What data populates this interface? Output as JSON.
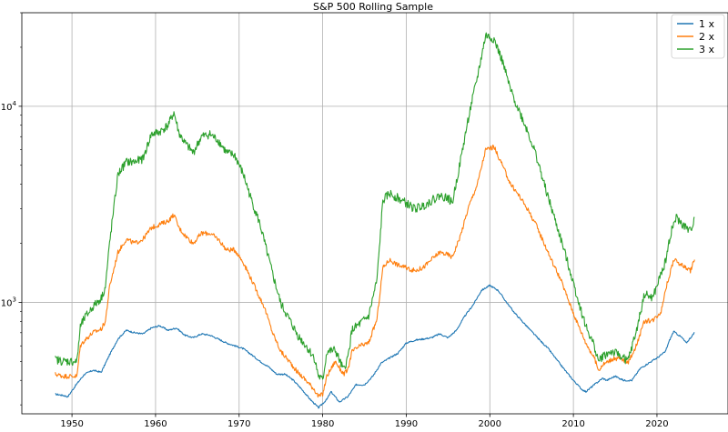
{
  "chart_data": {
    "type": "line",
    "title": "S&P 500 Rolling Sample",
    "xlabel": "",
    "ylabel": "",
    "xlim": [
      1944,
      2028.5
    ],
    "ylim": [
      270,
      30000
    ],
    "yscale": "log",
    "grid": true,
    "legend_position": "top-right",
    "x_ticks": [
      1950,
      1960,
      1970,
      1980,
      1990,
      2000,
      2010,
      2020
    ],
    "y_ticks": [
      {
        "value": 1000,
        "base": "10",
        "exp": "3"
      },
      {
        "value": 10000,
        "base": "10",
        "exp": "4"
      }
    ],
    "series": [
      {
        "name": "1 x",
        "color": "#1f77b4",
        "points": [
          [
            1948.0,
            340
          ],
          [
            1949.0,
            335
          ],
          [
            1949.5,
            330
          ],
          [
            1950.5,
            380
          ],
          [
            1951.5,
            430
          ],
          [
            1952.5,
            450
          ],
          [
            1953.5,
            440
          ],
          [
            1954.5,
            540
          ],
          [
            1955.5,
            650
          ],
          [
            1956.5,
            720
          ],
          [
            1957.5,
            700
          ],
          [
            1958.5,
            690
          ],
          [
            1959.5,
            740
          ],
          [
            1960.5,
            760
          ],
          [
            1961.5,
            720
          ],
          [
            1962.5,
            740
          ],
          [
            1963.5,
            680
          ],
          [
            1964.5,
            660
          ],
          [
            1965.5,
            690
          ],
          [
            1966.5,
            680
          ],
          [
            1967.5,
            650
          ],
          [
            1968.5,
            620
          ],
          [
            1969.5,
            600
          ],
          [
            1970.5,
            580
          ],
          [
            1971.5,
            540
          ],
          [
            1972.5,
            500
          ],
          [
            1973.5,
            470
          ],
          [
            1974.5,
            430
          ],
          [
            1975.5,
            430
          ],
          [
            1976.5,
            400
          ],
          [
            1977.5,
            360
          ],
          [
            1978.5,
            320
          ],
          [
            1979.5,
            290
          ],
          [
            1980.5,
            320
          ],
          [
            1981.0,
            350
          ],
          [
            1982.0,
            310
          ],
          [
            1983.0,
            330
          ],
          [
            1984.0,
            380
          ],
          [
            1985.0,
            380
          ],
          [
            1986.0,
            420
          ],
          [
            1987.0,
            490
          ],
          [
            1988.0,
            520
          ],
          [
            1989.0,
            550
          ],
          [
            1990.0,
            620
          ],
          [
            1991.0,
            640
          ],
          [
            1992.0,
            650
          ],
          [
            1993.0,
            660
          ],
          [
            1994.0,
            690
          ],
          [
            1995.0,
            660
          ],
          [
            1996.0,
            720
          ],
          [
            1997.0,
            850
          ],
          [
            1998.0,
            970
          ],
          [
            1999.0,
            1150
          ],
          [
            2000.0,
            1220
          ],
          [
            2001.0,
            1150
          ],
          [
            2002.0,
            1000
          ],
          [
            2003.0,
            880
          ],
          [
            2004.0,
            790
          ],
          [
            2005.0,
            710
          ],
          [
            2006.0,
            640
          ],
          [
            2007.0,
            580
          ],
          [
            2008.0,
            510
          ],
          [
            2009.0,
            450
          ],
          [
            2010.0,
            400
          ],
          [
            2011.0,
            360
          ],
          [
            2011.5,
            350
          ],
          [
            2012.5,
            380
          ],
          [
            2013.5,
            410
          ],
          [
            2014.0,
            400
          ],
          [
            2015.0,
            420
          ],
          [
            2016.0,
            400
          ],
          [
            2017.0,
            400
          ],
          [
            2018.0,
            460
          ],
          [
            2019.0,
            490
          ],
          [
            2020.0,
            520
          ],
          [
            2021.0,
            560
          ],
          [
            2021.5,
            640
          ],
          [
            2022.0,
            710
          ],
          [
            2023.0,
            660
          ],
          [
            2023.5,
            620
          ],
          [
            2024.5,
            700
          ]
        ]
      },
      {
        "name": "2 x",
        "color": "#ff7f0e",
        "points": [
          [
            1948.0,
            430
          ],
          [
            1949.0,
            420
          ],
          [
            1950.0,
            420
          ],
          [
            1950.6,
            420
          ],
          [
            1951.0,
            600
          ],
          [
            1951.5,
            640
          ],
          [
            1952.5,
            700
          ],
          [
            1953.5,
            730
          ],
          [
            1954.0,
            800
          ],
          [
            1954.5,
            1200
          ],
          [
            1955.5,
            1800
          ],
          [
            1956.5,
            2100
          ],
          [
            1957.5,
            2000
          ],
          [
            1958.5,
            2100
          ],
          [
            1959.5,
            2400
          ],
          [
            1960.5,
            2500
          ],
          [
            1961.5,
            2600
          ],
          [
            1962.2,
            2800
          ],
          [
            1962.8,
            2400
          ],
          [
            1963.5,
            2200
          ],
          [
            1964.5,
            2000
          ],
          [
            1965.5,
            2250
          ],
          [
            1966.5,
            2250
          ],
          [
            1967.5,
            2100
          ],
          [
            1968.5,
            1850
          ],
          [
            1969.5,
            1850
          ],
          [
            1970.5,
            1600
          ],
          [
            1971.5,
            1300
          ],
          [
            1972.5,
            1050
          ],
          [
            1973.0,
            950
          ],
          [
            1974.0,
            700
          ],
          [
            1975.0,
            560
          ],
          [
            1976.0,
            500
          ],
          [
            1977.0,
            440
          ],
          [
            1978.0,
            400
          ],
          [
            1979.0,
            360
          ],
          [
            1979.5,
            330
          ],
          [
            1980.0,
            340
          ],
          [
            1980.5,
            420
          ],
          [
            1981.5,
            500
          ],
          [
            1982.5,
            430
          ],
          [
            1983.0,
            450
          ],
          [
            1983.5,
            560
          ],
          [
            1984.5,
            600
          ],
          [
            1985.5,
            620
          ],
          [
            1986.5,
            820
          ],
          [
            1987.2,
            1500
          ],
          [
            1988.0,
            1650
          ],
          [
            1989.0,
            1550
          ],
          [
            1990.0,
            1500
          ],
          [
            1991.0,
            1450
          ],
          [
            1992.0,
            1500
          ],
          [
            1993.0,
            1650
          ],
          [
            1994.0,
            1800
          ],
          [
            1995.0,
            1750
          ],
          [
            1995.5,
            1700
          ],
          [
            1996.5,
            2200
          ],
          [
            1997.5,
            3100
          ],
          [
            1998.5,
            4000
          ],
          [
            1999.5,
            6000
          ],
          [
            2000.5,
            6200
          ],
          [
            2001.5,
            5000
          ],
          [
            2002.5,
            4000
          ],
          [
            2003.5,
            3500
          ],
          [
            2004.5,
            3000
          ],
          [
            2005.5,
            2500
          ],
          [
            2006.5,
            2000
          ],
          [
            2007.5,
            1600
          ],
          [
            2008.5,
            1300
          ],
          [
            2009.5,
            1000
          ],
          [
            2010.5,
            780
          ],
          [
            2011.5,
            620
          ],
          [
            2012.5,
            520
          ],
          [
            2013.0,
            450
          ],
          [
            2013.5,
            480
          ],
          [
            2014.5,
            510
          ],
          [
            2015.5,
            520
          ],
          [
            2016.5,
            490
          ],
          [
            2017.5,
            600
          ],
          [
            2018.5,
            800
          ],
          [
            2019.5,
            810
          ],
          [
            2020.5,
            900
          ],
          [
            2021.0,
            1150
          ],
          [
            2022.0,
            1650
          ],
          [
            2023.0,
            1550
          ],
          [
            2024.0,
            1450
          ],
          [
            2024.5,
            1650
          ]
        ]
      },
      {
        "name": "3 x",
        "color": "#2ca02c",
        "points": [
          [
            1948.0,
            510
          ],
          [
            1949.0,
            500
          ],
          [
            1950.0,
            500
          ],
          [
            1950.6,
            500
          ],
          [
            1951.0,
            750
          ],
          [
            1951.5,
            830
          ],
          [
            1952.5,
            950
          ],
          [
            1953.5,
            1050
          ],
          [
            1954.0,
            1200
          ],
          [
            1954.5,
            2000
          ],
          [
            1955.5,
            4500
          ],
          [
            1956.5,
            5200
          ],
          [
            1957.5,
            5200
          ],
          [
            1958.5,
            5400
          ],
          [
            1959.5,
            7200
          ],
          [
            1960.5,
            7400
          ],
          [
            1961.5,
            8000
          ],
          [
            1962.2,
            9300
          ],
          [
            1962.8,
            7300
          ],
          [
            1963.5,
            6500
          ],
          [
            1964.5,
            5800
          ],
          [
            1965.5,
            7000
          ],
          [
            1966.5,
            7200
          ],
          [
            1967.5,
            6700
          ],
          [
            1968.5,
            5800
          ],
          [
            1969.5,
            5600
          ],
          [
            1970.5,
            4500
          ],
          [
            1971.5,
            3300
          ],
          [
            1972.5,
            2500
          ],
          [
            1973.0,
            2050
          ],
          [
            1974.0,
            1400
          ],
          [
            1975.0,
            980
          ],
          [
            1976.0,
            820
          ],
          [
            1977.0,
            680
          ],
          [
            1978.0,
            600
          ],
          [
            1979.0,
            520
          ],
          [
            1979.5,
            420
          ],
          [
            1980.0,
            400
          ],
          [
            1980.5,
            560
          ],
          [
            1981.5,
            570
          ],
          [
            1982.5,
            450
          ],
          [
            1983.0,
            520
          ],
          [
            1983.5,
            720
          ],
          [
            1984.5,
            780
          ],
          [
            1985.5,
            850
          ],
          [
            1986.5,
            1300
          ],
          [
            1987.2,
            3300
          ],
          [
            1988.0,
            3600
          ],
          [
            1989.0,
            3400
          ],
          [
            1990.0,
            3200
          ],
          [
            1991.0,
            3000
          ],
          [
            1992.0,
            3100
          ],
          [
            1993.0,
            3300
          ],
          [
            1994.0,
            3500
          ],
          [
            1995.0,
            3400
          ],
          [
            1995.5,
            3200
          ],
          [
            1996.5,
            5300
          ],
          [
            1997.5,
            9000
          ],
          [
            1998.5,
            14000
          ],
          [
            1999.5,
            23000
          ],
          [
            2000.5,
            22000
          ],
          [
            2001.5,
            17000
          ],
          [
            2002.5,
            12000
          ],
          [
            2003.5,
            9500
          ],
          [
            2004.5,
            7500
          ],
          [
            2005.5,
            5700
          ],
          [
            2006.5,
            4000
          ],
          [
            2007.5,
            2900
          ],
          [
            2008.5,
            2100
          ],
          [
            2009.5,
            1500
          ],
          [
            2010.5,
            1050
          ],
          [
            2011.5,
            750
          ],
          [
            2012.5,
            600
          ],
          [
            2013.0,
            500
          ],
          [
            2013.5,
            530
          ],
          [
            2014.5,
            560
          ],
          [
            2015.5,
            540
          ],
          [
            2016.5,
            500
          ],
          [
            2017.5,
            700
          ],
          [
            2018.5,
            1100
          ],
          [
            2019.5,
            1050
          ],
          [
            2020.5,
            1400
          ],
          [
            2021.0,
            1600
          ],
          [
            2021.7,
            2300
          ],
          [
            2022.3,
            2700
          ],
          [
            2023.0,
            2500
          ],
          [
            2024.0,
            2300
          ],
          [
            2024.5,
            2700
          ]
        ]
      }
    ]
  }
}
